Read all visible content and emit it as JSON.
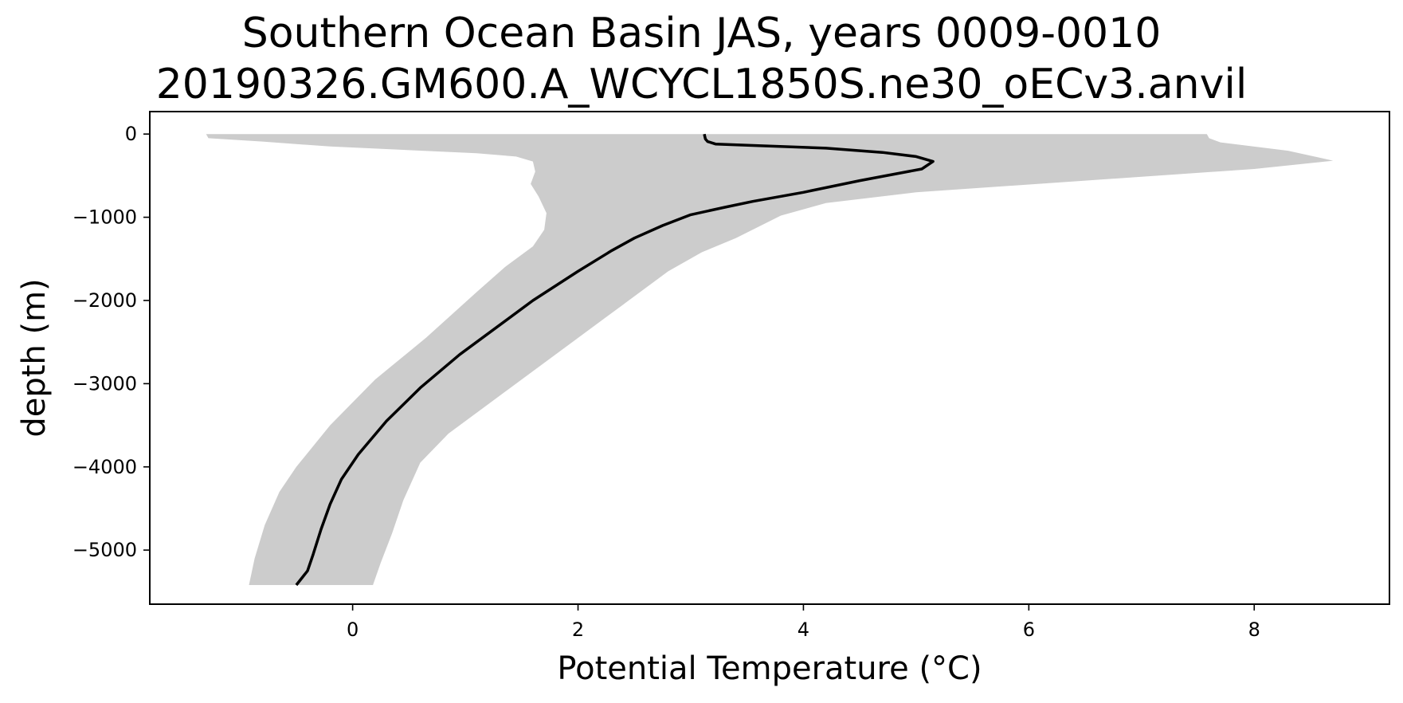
{
  "chart_data": {
    "type": "area",
    "title": "Southern Ocean Basin JAS, years 0009-0010",
    "subtitle": "20190326.GM600.A_WCYCL1850S.ne30_oECv3.anvil",
    "xlabel": "Potential Temperature (°C)",
    "ylabel": "depth (m)",
    "xlim": [
      -1.8,
      9.2
    ],
    "ylim": [
      -5650,
      270
    ],
    "xticks": [
      0,
      2,
      4,
      6,
      8
    ],
    "xtick_labels": [
      "0",
      "2",
      "4",
      "6",
      "8"
    ],
    "yticks": [
      0,
      -1000,
      -2000,
      -3000,
      -4000,
      -5000
    ],
    "ytick_labels": [
      "0",
      "−1000",
      "−2000",
      "−3000",
      "−4000",
      "−5000"
    ],
    "grid": false,
    "colors": {
      "line": "#000000",
      "band": "#cccccc",
      "axes": "#000000"
    },
    "series": [
      {
        "values": [
          [
            3.12,
            0
          ],
          [
            3.13,
            -60
          ],
          [
            3.15,
            -90
          ],
          [
            3.22,
            -120
          ],
          [
            3.6,
            -140
          ],
          [
            4.2,
            -170
          ],
          [
            4.7,
            -220
          ],
          [
            5.0,
            -270
          ],
          [
            5.15,
            -330
          ],
          [
            5.05,
            -420
          ],
          [
            4.5,
            -560
          ],
          [
            4.0,
            -700
          ],
          [
            3.55,
            -810
          ],
          [
            3.3,
            -880
          ],
          [
            3.0,
            -970
          ],
          [
            2.75,
            -1100
          ],
          [
            2.5,
            -1250
          ],
          [
            2.3,
            -1400
          ],
          [
            2.0,
            -1650
          ],
          [
            1.6,
            -2000
          ],
          [
            1.3,
            -2300
          ],
          [
            0.95,
            -2650
          ],
          [
            0.6,
            -3050
          ],
          [
            0.3,
            -3450
          ],
          [
            0.05,
            -3850
          ],
          [
            -0.1,
            -4150
          ],
          [
            -0.2,
            -4450
          ],
          [
            -0.28,
            -4750
          ],
          [
            -0.35,
            -5050
          ],
          [
            -0.4,
            -5250
          ],
          [
            -0.5,
            -5420
          ]
        ]
      }
    ],
    "band": {
      "lower": [
        [
          -1.3,
          0
        ],
        [
          -1.28,
          -50
        ],
        [
          -0.8,
          -90
        ],
        [
          -0.2,
          -150
        ],
        [
          1.1,
          -230
        ],
        [
          1.45,
          -270
        ],
        [
          1.6,
          -330
        ],
        [
          1.62,
          -450
        ],
        [
          1.58,
          -600
        ],
        [
          1.65,
          -750
        ],
        [
          1.72,
          -950
        ],
        [
          1.7,
          -1150
        ],
        [
          1.6,
          -1350
        ],
        [
          1.35,
          -1600
        ],
        [
          1.1,
          -1900
        ],
        [
          0.65,
          -2450
        ],
        [
          0.2,
          -2950
        ],
        [
          -0.2,
          -3500
        ],
        [
          -0.5,
          -4000
        ],
        [
          -0.65,
          -4300
        ],
        [
          -0.78,
          -4700
        ],
        [
          -0.87,
          -5100
        ],
        [
          -0.92,
          -5420
        ]
      ],
      "upper": [
        [
          7.58,
          0
        ],
        [
          7.6,
          -50
        ],
        [
          7.7,
          -100
        ],
        [
          8.3,
          -200
        ],
        [
          8.7,
          -320
        ],
        [
          8.0,
          -420
        ],
        [
          6.5,
          -560
        ],
        [
          5.0,
          -700
        ],
        [
          4.2,
          -830
        ],
        [
          3.8,
          -980
        ],
        [
          3.4,
          -1250
        ],
        [
          3.1,
          -1420
        ],
        [
          2.8,
          -1650
        ],
        [
          2.4,
          -2050
        ],
        [
          1.9,
          -2550
        ],
        [
          1.35,
          -3100
        ],
        [
          0.85,
          -3600
        ],
        [
          0.6,
          -3950
        ],
        [
          0.45,
          -4400
        ],
        [
          0.35,
          -4800
        ],
        [
          0.25,
          -5150
        ],
        [
          0.18,
          -5420
        ]
      ]
    }
  }
}
